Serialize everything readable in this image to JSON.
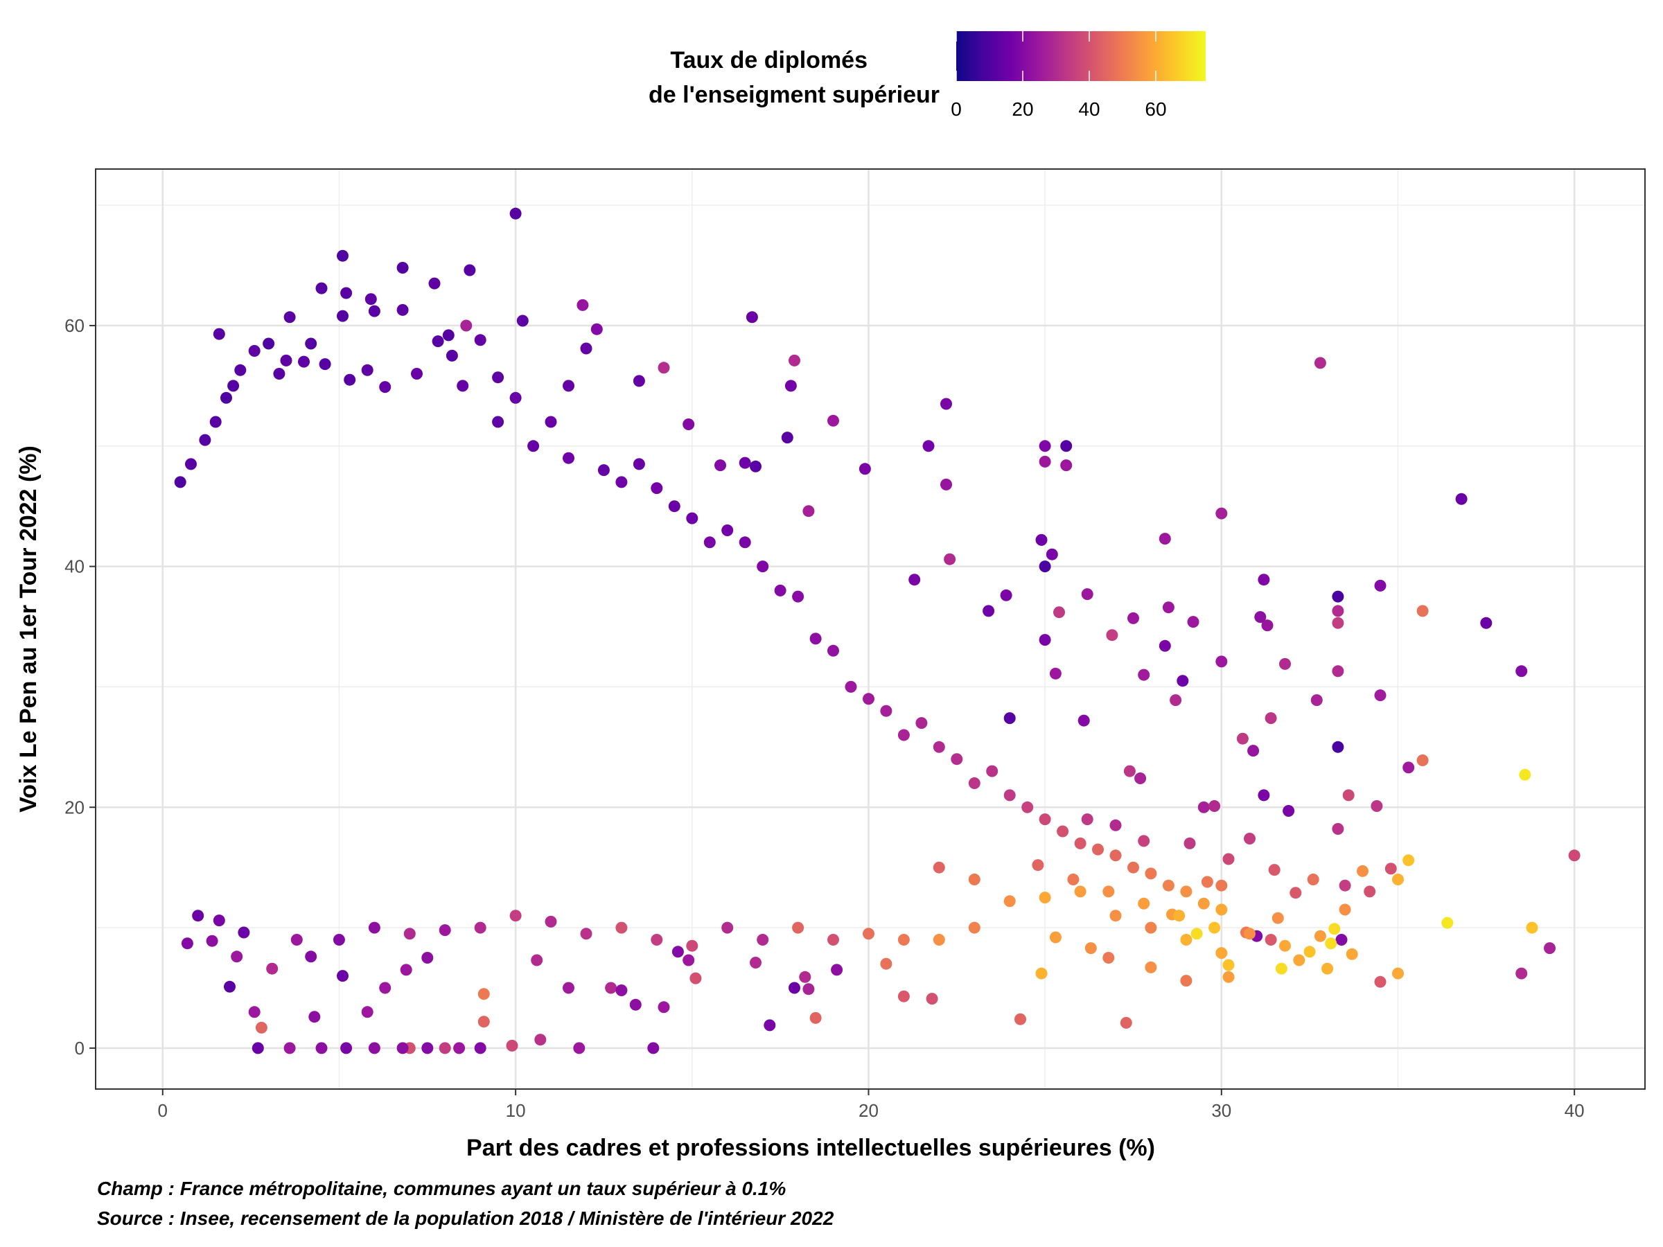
{
  "chart_data": {
    "type": "scatter",
    "title": "",
    "xlabel": "Part des cadres et professions intellectuelles supérieures (%)",
    "ylabel": "Voix Le Pen au 1er Tour 2022 (%)",
    "xlim": [
      -1.9,
      42
    ],
    "ylim": [
      -3.4,
      73
    ],
    "x_ticks": [
      0,
      10,
      20,
      30,
      40
    ],
    "y_ticks": [
      0,
      20,
      40,
      60
    ],
    "grid": true,
    "legend": {
      "title_line1": "Taux de diplomés",
      "title_line2": "de l'enseigment supérieur",
      "placement": "top",
      "range": [
        0,
        75
      ],
      "ticks": [
        0,
        20,
        40,
        60
      ],
      "palette": [
        "#0d0887",
        "#46039f",
        "#7201a8",
        "#9c179e",
        "#bd3786",
        "#d8576b",
        "#ed7953",
        "#fb9f3a",
        "#fdca26",
        "#f0f921"
      ]
    },
    "points_note": "Cloud of several thousand communes; representative sample read from the figure",
    "points": [
      [
        10.0,
        69.3,
        12
      ],
      [
        5.1,
        65.8,
        10
      ],
      [
        6.8,
        64.8,
        11
      ],
      [
        8.7,
        64.6,
        12
      ],
      [
        4.5,
        63.1,
        12
      ],
      [
        7.7,
        63.5,
        13
      ],
      [
        5.2,
        62.7,
        12
      ],
      [
        5.9,
        62.2,
        13
      ],
      [
        3.6,
        60.7,
        12
      ],
      [
        5.1,
        60.8,
        11
      ],
      [
        6.0,
        61.2,
        12
      ],
      [
        6.8,
        61.3,
        13
      ],
      [
        10.2,
        60.4,
        13
      ],
      [
        16.7,
        60.7,
        15
      ],
      [
        11.9,
        61.7,
        24
      ],
      [
        12.3,
        59.7,
        20
      ],
      [
        8.6,
        60.0,
        28
      ],
      [
        1.6,
        59.3,
        12
      ],
      [
        8.1,
        59.2,
        11
      ],
      [
        3.5,
        57.1,
        13
      ],
      [
        12.0,
        58.1,
        14
      ],
      [
        17.9,
        57.1,
        30
      ],
      [
        14.2,
        56.5,
        31
      ],
      [
        32.8,
        56.9,
        30
      ],
      [
        13.5,
        55.4,
        14
      ],
      [
        9.5,
        55.7,
        13
      ],
      [
        11.5,
        55.0,
        14
      ],
      [
        17.8,
        55.0,
        17
      ],
      [
        22.2,
        53.5,
        18
      ],
      [
        19.0,
        52.1,
        25
      ],
      [
        14.9,
        51.8,
        20
      ],
      [
        17.7,
        50.7,
        12
      ],
      [
        21.7,
        50.0,
        17
      ],
      [
        25.0,
        50.0,
        19
      ],
      [
        25.6,
        50.0,
        11
      ],
      [
        25.0,
        48.7,
        25
      ],
      [
        25.6,
        48.4,
        25
      ],
      [
        16.5,
        48.6,
        16
      ],
      [
        15.8,
        48.4,
        20
      ],
      [
        16.8,
        48.3,
        12
      ],
      [
        19.9,
        48.1,
        18
      ],
      [
        22.2,
        46.8,
        24
      ],
      [
        36.8,
        45.6,
        15
      ],
      [
        30.0,
        44.4,
        27
      ],
      [
        18.3,
        44.6,
        27
      ],
      [
        28.4,
        42.3,
        25
      ],
      [
        24.9,
        42.2,
        16
      ],
      [
        25.2,
        41.0,
        18
      ],
      [
        25.0,
        40.0,
        9
      ],
      [
        22.3,
        40.6,
        30
      ],
      [
        21.3,
        38.9,
        18
      ],
      [
        23.9,
        37.6,
        18
      ],
      [
        31.2,
        38.9,
        19
      ],
      [
        34.5,
        38.4,
        20
      ],
      [
        33.3,
        37.5,
        9
      ],
      [
        26.2,
        37.7,
        25
      ],
      [
        35.7,
        36.3,
        48
      ],
      [
        23.4,
        36.3,
        16
      ],
      [
        28.5,
        36.6,
        25
      ],
      [
        25.4,
        36.2,
        34
      ],
      [
        31.1,
        35.8,
        22
      ],
      [
        31.3,
        35.1,
        24
      ],
      [
        33.3,
        36.3,
        30
      ],
      [
        33.3,
        35.3,
        35
      ],
      [
        37.5,
        35.3,
        15
      ],
      [
        27.5,
        35.7,
        25
      ],
      [
        29.2,
        35.4,
        25
      ],
      [
        26.9,
        34.3,
        35
      ],
      [
        25.0,
        33.9,
        18
      ],
      [
        28.4,
        33.4,
        18
      ],
      [
        30.0,
        32.1,
        25
      ],
      [
        31.8,
        31.9,
        30
      ],
      [
        33.3,
        31.3,
        30
      ],
      [
        38.5,
        31.3,
        20
      ],
      [
        25.3,
        31.1,
        25
      ],
      [
        27.8,
        31.0,
        26
      ],
      [
        28.9,
        30.5,
        16
      ],
      [
        24.0,
        27.4,
        12
      ],
      [
        26.1,
        27.2,
        20
      ],
      [
        32.7,
        28.9,
        28
      ],
      [
        28.7,
        28.9,
        30
      ],
      [
        31.4,
        27.4,
        33
      ],
      [
        33.3,
        25.0,
        9
      ],
      [
        30.6,
        25.7,
        34
      ],
      [
        30.9,
        24.7,
        24
      ],
      [
        35.7,
        23.9,
        48
      ],
      [
        34.5,
        29.3,
        26
      ],
      [
        35.3,
        23.3,
        26
      ],
      [
        31.2,
        21.0,
        18
      ],
      [
        33.6,
        21.0,
        38
      ],
      [
        27.4,
        23.0,
        33
      ],
      [
        27.7,
        22.4,
        28
      ],
      [
        29.5,
        20.0,
        27
      ],
      [
        29.8,
        20.1,
        30
      ],
      [
        31.9,
        19.7,
        18
      ],
      [
        34.4,
        20.1,
        33
      ],
      [
        38.6,
        22.7,
        72
      ],
      [
        33.3,
        18.2,
        32
      ],
      [
        35.3,
        15.6,
        65
      ],
      [
        34.0,
        14.7,
        55
      ],
      [
        30.8,
        17.4,
        35
      ],
      [
        40.0,
        16.0,
        38
      ],
      [
        32.1,
        12.9,
        42
      ],
      [
        29.6,
        13.8,
        50
      ],
      [
        30.0,
        13.5,
        50
      ],
      [
        28.6,
        11.1,
        58
      ],
      [
        29.3,
        9.5,
        70
      ],
      [
        30.7,
        9.6,
        50
      ],
      [
        31.0,
        9.3,
        20
      ],
      [
        31.4,
        9.0,
        42
      ],
      [
        31.6,
        10.8,
        55
      ],
      [
        32.8,
        9.3,
        58
      ],
      [
        33.2,
        9.9,
        70
      ],
      [
        33.4,
        9.0,
        20
      ],
      [
        33.5,
        11.5,
        55
      ],
      [
        34.8,
        14.9,
        40
      ],
      [
        35.0,
        6.2,
        60
      ],
      [
        36.4,
        10.4,
        72
      ],
      [
        38.5,
        6.2,
        30
      ],
      [
        38.8,
        10.0,
        65
      ],
      [
        39.3,
        8.3,
        28
      ],
      [
        33.0,
        6.6,
        62
      ],
      [
        32.2,
        7.3,
        60
      ],
      [
        30.2,
        5.9,
        58
      ],
      [
        34.5,
        5.5,
        42
      ],
      [
        33.7,
        7.8,
        60
      ],
      [
        31.7,
        6.6,
        70
      ],
      [
        30.0,
        7.9,
        60
      ],
      [
        30.2,
        6.9,
        65
      ],
      [
        24.3,
        2.4,
        45
      ],
      [
        27.3,
        2.1,
        45
      ],
      [
        26.3,
        8.3,
        55
      ],
      [
        25.3,
        9.2,
        58
      ],
      [
        24.9,
        6.2,
        62
      ],
      [
        26.8,
        7.5,
        50
      ],
      [
        28.0,
        6.7,
        55
      ],
      [
        29.0,
        5.6,
        50
      ],
      [
        24.0,
        12.2,
        55
      ],
      [
        25.0,
        12.5,
        60
      ],
      [
        26.0,
        13.0,
        58
      ],
      [
        27.0,
        11.0,
        55
      ],
      [
        28.0,
        10.0,
        52
      ],
      [
        29.0,
        9.0,
        62
      ],
      [
        23.0,
        14.0,
        50
      ],
      [
        22.0,
        15.0,
        45
      ],
      [
        21.0,
        4.3,
        42
      ],
      [
        21.8,
        4.1,
        40
      ],
      [
        20.5,
        7.0,
        48
      ],
      [
        18.5,
        2.5,
        45
      ],
      [
        17.2,
        1.9,
        18
      ],
      [
        17.9,
        5.0,
        15
      ],
      [
        18.3,
        4.9,
        28
      ],
      [
        18.2,
        5.9,
        30
      ],
      [
        19.1,
        6.5,
        22
      ],
      [
        16.8,
        7.1,
        30
      ],
      [
        15.1,
        5.8,
        40
      ],
      [
        14.9,
        7.3,
        25
      ],
      [
        14.6,
        8.0,
        20
      ],
      [
        14.2,
        3.4,
        25
      ],
      [
        12.7,
        5.0,
        30
      ],
      [
        13.0,
        4.8,
        22
      ],
      [
        13.4,
        3.6,
        22
      ],
      [
        13.9,
        0.0,
        20
      ],
      [
        11.8,
        0.0,
        25
      ],
      [
        10.7,
        0.7,
        32
      ],
      [
        9.9,
        0.2,
        38
      ],
      [
        9.0,
        0.0,
        20
      ],
      [
        8.4,
        0.0,
        25
      ],
      [
        8.0,
        0.0,
        35
      ],
      [
        7.5,
        0.0,
        20
      ],
      [
        7.0,
        0.0,
        40
      ],
      [
        6.8,
        0.0,
        22
      ],
      [
        6.0,
        0.0,
        22
      ],
      [
        5.2,
        0.0,
        18
      ],
      [
        4.5,
        0.0,
        22
      ],
      [
        3.6,
        0.0,
        25
      ],
      [
        2.7,
        0.0,
        15
      ],
      [
        2.8,
        1.7,
        45
      ],
      [
        2.6,
        3.0,
        25
      ],
      [
        4.3,
        2.6,
        22
      ],
      [
        5.8,
        3.0,
        25
      ],
      [
        6.3,
        5.0,
        25
      ],
      [
        9.1,
        4.5,
        50
      ],
      [
        9.1,
        2.2,
        45
      ],
      [
        10.6,
        7.3,
        30
      ],
      [
        11.5,
        5.0,
        26
      ],
      [
        1.9,
        5.1,
        12
      ],
      [
        2.1,
        7.6,
        25
      ],
      [
        3.1,
        6.6,
        30
      ],
      [
        4.2,
        7.6,
        20
      ],
      [
        5.1,
        6.0,
        15
      ],
      [
        6.9,
        6.5,
        25
      ],
      [
        7.5,
        7.5,
        22
      ],
      [
        1.4,
        8.9,
        22
      ],
      [
        1.6,
        10.6,
        18
      ],
      [
        0.7,
        8.7,
        20
      ],
      [
        1.0,
        11.0,
        15
      ],
      [
        2.3,
        9.6,
        15
      ],
      [
        3.8,
        9.0,
        25
      ],
      [
        5.0,
        9.0,
        20
      ],
      [
        6.0,
        10.0,
        22
      ],
      [
        7.0,
        9.5,
        30
      ],
      [
        8.0,
        9.8,
        25
      ],
      [
        9.0,
        10.0,
        30
      ],
      [
        10.0,
        11.0,
        35
      ],
      [
        11.0,
        10.5,
        30
      ],
      [
        12.0,
        9.5,
        32
      ],
      [
        13.0,
        10.0,
        40
      ],
      [
        14.0,
        9.0,
        35
      ],
      [
        15.0,
        8.5,
        38
      ],
      [
        16.0,
        10.0,
        30
      ],
      [
        17.0,
        9.0,
        30
      ],
      [
        18.0,
        10.0,
        45
      ],
      [
        19.0,
        9.0,
        40
      ],
      [
        20.0,
        9.5,
        48
      ],
      [
        21.0,
        9.0,
        50
      ],
      [
        22.0,
        9.0,
        55
      ],
      [
        23.0,
        10.0,
        52
      ],
      [
        0.5,
        47.0,
        10
      ],
      [
        0.8,
        48.5,
        12
      ],
      [
        1.2,
        50.5,
        11
      ],
      [
        1.5,
        52.0,
        12
      ],
      [
        1.8,
        54.0,
        10
      ],
      [
        2.0,
        55.0,
        11
      ],
      [
        2.2,
        56.3,
        12
      ],
      [
        2.6,
        57.9,
        13
      ],
      [
        3.0,
        58.5,
        10
      ],
      [
        3.3,
        56.0,
        12
      ],
      [
        4.0,
        57.0,
        13
      ],
      [
        4.2,
        58.5,
        11
      ],
      [
        4.6,
        56.8,
        12
      ],
      [
        5.3,
        55.5,
        12
      ],
      [
        5.8,
        56.3,
        13
      ],
      [
        6.3,
        54.9,
        14
      ],
      [
        7.2,
        56.0,
        15
      ],
      [
        7.8,
        58.7,
        12
      ],
      [
        8.2,
        57.5,
        12
      ],
      [
        9.0,
        58.8,
        14
      ],
      [
        8.5,
        55.0,
        14
      ],
      [
        9.5,
        52.0,
        13
      ],
      [
        10.0,
        54.0,
        15
      ],
      [
        10.5,
        50.0,
        14
      ],
      [
        11.0,
        52.0,
        15
      ],
      [
        11.5,
        49.0,
        16
      ],
      [
        12.5,
        48.0,
        14
      ],
      [
        13.0,
        47.0,
        16
      ],
      [
        13.5,
        48.5,
        15
      ],
      [
        14.0,
        46.5,
        17
      ],
      [
        14.5,
        45.0,
        15
      ],
      [
        15.0,
        44.0,
        16
      ],
      [
        15.5,
        42.0,
        18
      ],
      [
        16.0,
        43.0,
        17
      ],
      [
        16.5,
        42.0,
        18
      ],
      [
        17.0,
        40.0,
        19
      ],
      [
        17.5,
        38.0,
        20
      ],
      [
        18.0,
        37.5,
        21
      ],
      [
        18.5,
        34.0,
        22
      ],
      [
        19.0,
        33.0,
        23
      ],
      [
        19.5,
        30.0,
        25
      ],
      [
        20.0,
        29.0,
        26
      ],
      [
        20.5,
        28.0,
        27
      ],
      [
        21.0,
        26.0,
        28
      ],
      [
        21.5,
        27.0,
        29
      ],
      [
        22.0,
        25.0,
        30
      ],
      [
        22.5,
        24.0,
        31
      ],
      [
        23.0,
        22.0,
        33
      ],
      [
        23.5,
        23.0,
        32
      ],
      [
        24.0,
        21.0,
        34
      ],
      [
        24.5,
        20.0,
        36
      ],
      [
        25.0,
        19.0,
        38
      ],
      [
        25.5,
        18.0,
        40
      ],
      [
        26.0,
        17.0,
        42
      ],
      [
        26.5,
        16.5,
        45
      ],
      [
        27.0,
        16.0,
        46
      ],
      [
        27.5,
        15.0,
        48
      ],
      [
        28.0,
        14.5,
        50
      ],
      [
        28.5,
        13.5,
        52
      ],
      [
        29.0,
        13.0,
        55
      ],
      [
        29.5,
        12.0,
        58
      ],
      [
        30.0,
        11.5,
        60
      ],
      [
        26.2,
        19.0,
        34
      ],
      [
        27.0,
        18.5,
        30
      ],
      [
        27.8,
        17.2,
        36
      ],
      [
        29.1,
        17.0,
        34
      ],
      [
        30.2,
        15.7,
        38
      ],
      [
        31.5,
        14.8,
        42
      ],
      [
        32.6,
        14.0,
        48
      ],
      [
        33.5,
        13.5,
        35
      ],
      [
        34.2,
        13.0,
        40
      ],
      [
        35.0,
        14.0,
        62
      ],
      [
        24.8,
        15.2,
        45
      ],
      [
        25.8,
        14.0,
        50
      ],
      [
        26.8,
        13.0,
        55
      ],
      [
        27.8,
        12.0,
        58
      ],
      [
        28.8,
        11.0,
        62
      ],
      [
        29.8,
        10.0,
        65
      ],
      [
        30.8,
        9.5,
        55
      ],
      [
        31.8,
        8.5,
        60
      ],
      [
        32.5,
        8.0,
        65
      ],
      [
        33.1,
        8.7,
        70
      ]
    ]
  },
  "caption_line1": "Champ : France métropolitaine, communes ayant un taux supérieur à 0.1%",
  "caption_line2": "Source : Insee, recensement de la population 2018 / Ministère de l'intérieur 2022"
}
